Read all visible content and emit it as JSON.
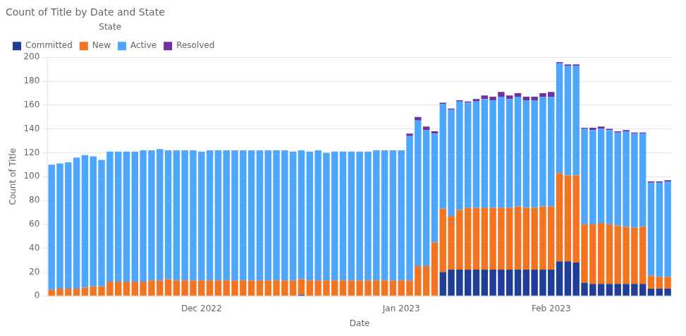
{
  "chart_data": {
    "type": "bar",
    "stacked": true,
    "title": "Count of Title by Date and State",
    "xlabel": "Date",
    "ylabel": "Count of Title",
    "legend_title": "State",
    "legend": "upper left",
    "grid": true,
    "ylim": [
      0,
      200
    ],
    "yticks": [
      0,
      20,
      40,
      60,
      80,
      100,
      120,
      140,
      160,
      180,
      200
    ],
    "categories": [
      null,
      null,
      null,
      null,
      null,
      null,
      null,
      null,
      null,
      null,
      null,
      null,
      null,
      null,
      null,
      null,
      null,
      null,
      "Dec 2022",
      null,
      null,
      null,
      null,
      null,
      null,
      null,
      null,
      null,
      null,
      null,
      null,
      null,
      null,
      null,
      null,
      null,
      null,
      null,
      null,
      null,
      null,
      null,
      "Jan 2023",
      null,
      null,
      null,
      null,
      null,
      null,
      null,
      null,
      null,
      null,
      null,
      null,
      null,
      null,
      null,
      null,
      null,
      "Feb 2023",
      null,
      null,
      null,
      null,
      null,
      null,
      null,
      null,
      null,
      null,
      null,
      null,
      null,
      null
    ],
    "series": [
      {
        "name": "Committed",
        "color": "#1f3d99",
        "values": [
          0,
          0,
          0,
          0,
          0,
          0,
          0,
          0,
          0,
          0,
          0,
          0,
          0,
          0,
          0,
          0,
          0,
          0,
          0,
          0,
          0,
          0,
          0,
          0,
          0,
          0,
          0,
          0,
          0,
          0,
          1,
          0,
          0,
          0,
          0,
          0,
          0,
          0,
          0,
          0,
          0,
          0,
          0,
          0,
          0,
          0,
          0,
          20,
          22,
          22,
          22,
          22,
          22,
          22,
          22,
          22,
          22,
          22,
          22,
          22,
          22,
          29,
          29,
          28,
          11,
          10,
          10,
          10,
          10,
          10,
          10,
          10,
          6,
          6,
          6
        ]
      },
      {
        "name": "New",
        "color": "#f47321",
        "values": [
          5,
          6,
          6,
          6,
          7,
          8,
          8,
          12,
          12,
          12,
          12,
          12,
          13,
          13,
          14,
          13,
          13,
          13,
          13,
          13,
          13,
          13,
          13,
          13,
          13,
          13,
          13,
          13,
          13,
          13,
          13,
          13,
          13,
          13,
          13,
          13,
          13,
          13,
          13,
          13,
          13,
          13,
          13,
          13,
          25,
          25,
          45,
          53,
          45,
          50,
          52,
          52,
          52,
          52,
          52,
          52,
          53,
          52,
          52,
          53,
          53,
          74,
          72,
          73,
          49,
          50,
          51,
          50,
          49,
          48,
          47,
          48,
          11,
          10,
          10
        ]
      },
      {
        "name": "Active",
        "color": "#4da6ff",
        "values": [
          105,
          105,
          106,
          110,
          111,
          109,
          106,
          109,
          109,
          109,
          109,
          110,
          109,
          110,
          108,
          109,
          109,
          109,
          108,
          109,
          109,
          109,
          109,
          109,
          109,
          109,
          109,
          109,
          109,
          108,
          108,
          108,
          109,
          107,
          108,
          108,
          108,
          108,
          108,
          109,
          109,
          109,
          109,
          121,
          122,
          114,
          91,
          88,
          89,
          91,
          88,
          89,
          91,
          90,
          93,
          91,
          92,
          90,
          90,
          92,
          92,
          92,
          92,
          92,
          80,
          79,
          79,
          79,
          78,
          80,
          79,
          78,
          78,
          79,
          80
        ]
      },
      {
        "name": "Resolved",
        "color": "#7030a0",
        "values": [
          0,
          0,
          0,
          0,
          0,
          0,
          0,
          0,
          0,
          0,
          0,
          0,
          0,
          0,
          0,
          0,
          0,
          0,
          0,
          0,
          0,
          0,
          0,
          0,
          0,
          0,
          0,
          0,
          0,
          0,
          0,
          0,
          0,
          0,
          0,
          0,
          0,
          0,
          0,
          0,
          0,
          0,
          0,
          2,
          3,
          3,
          2,
          1,
          1,
          1,
          1,
          2,
          3,
          3,
          4,
          3,
          3,
          3,
          3,
          3,
          4,
          1,
          1,
          1,
          1,
          2,
          2,
          1,
          1,
          1,
          1,
          1,
          1,
          1,
          1
        ]
      }
    ]
  }
}
